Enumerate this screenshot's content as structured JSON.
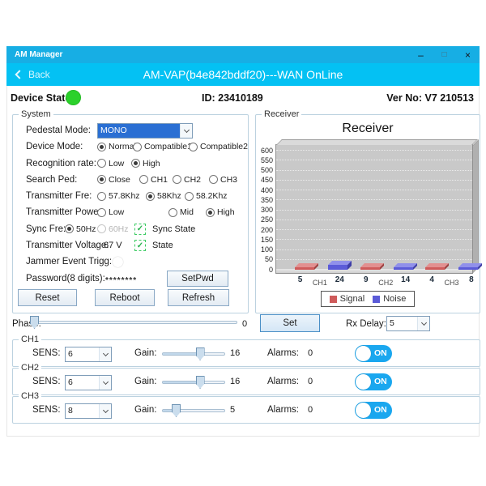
{
  "window": {
    "title": "AM Manager",
    "controls": {
      "minimize": "–",
      "maximize": "□",
      "close": "×"
    }
  },
  "header": {
    "back_label": "Back",
    "title": "AM-VAP(b4e842bddf20)---WAN OnLine"
  },
  "status": {
    "device_state_label": "Device State:",
    "id_label": "ID:  23410189",
    "ver_label": "Ver No:  V7 210513"
  },
  "system": {
    "group_label": "System",
    "pedestal_mode": {
      "label": "Pedestal Mode:",
      "value": "MONO"
    },
    "device_mode": {
      "label": "Device Mode:",
      "options": [
        "Normal",
        "Compatible1",
        "Compatible2"
      ],
      "selected": "Normal"
    },
    "recognition_rate": {
      "label": "Recognition rate:",
      "options": [
        "Low",
        "High"
      ],
      "selected": "High"
    },
    "search_ped": {
      "label": "Search Ped:",
      "options": [
        "Close",
        "CH1",
        "CH2",
        "CH3"
      ],
      "selected": "Close"
    },
    "transmitter_fre": {
      "label": "Transmitter Fre:",
      "options": [
        "57.8Khz",
        "58Khz",
        "58.2Khz"
      ],
      "selected": "58Khz"
    },
    "transmitter_power": {
      "label": "Transmitter Power:",
      "options": [
        "Low",
        "Mid",
        "High"
      ],
      "selected": "High"
    },
    "sync_fre": {
      "label": "Sync Fre:",
      "options": [
        "50Hz",
        "60Hz"
      ],
      "selected": "50Hz",
      "disabled_option": "60Hz",
      "check_glyph": "✓",
      "state_label": "Sync State"
    },
    "transmitter_voltage": {
      "label": "Transmitter Voltage:",
      "value": "67 V",
      "check_glyph": "✓",
      "state_label": "State"
    },
    "jammer": {
      "label": "Jammer Event Trigg:",
      "toggle_state": "ON"
    },
    "password": {
      "label": "Password(8 digits):",
      "masked_value": "********",
      "set_button": "SetPwd"
    },
    "actions": {
      "reset": "Reset",
      "reboot": "Reboot",
      "refresh": "Refresh"
    }
  },
  "receiver": {
    "group_label": "Receiver"
  },
  "chart_data": {
    "type": "bar",
    "title": "Receiver",
    "categories": [
      "CH1",
      "CH2",
      "CH3"
    ],
    "series": [
      {
        "name": "Signal",
        "color": "#cf5b5b",
        "color_light": "#e29090",
        "color_dark": "#9e4040",
        "values": [
          5,
          9,
          4
        ]
      },
      {
        "name": "Noise",
        "color": "#5b5bd8",
        "color_light": "#9090ea",
        "color_dark": "#3e3ea6",
        "values": [
          24,
          14,
          8
        ]
      }
    ],
    "xlabel": "",
    "ylabel": "",
    "ylim": [
      0,
      600
    ],
    "yticks": [
      0,
      50,
      100,
      150,
      200,
      250,
      300,
      350,
      400,
      450,
      500,
      550,
      600
    ],
    "legend_position": "bottom",
    "grid": true,
    "plot_background": "#c9c9c9"
  },
  "phase": {
    "label": "Phase:",
    "value": "0",
    "slider_pct": 0,
    "set_button": "Set",
    "rx_delay_label": "Rx Delay:",
    "rx_delay_value": "5"
  },
  "channels": [
    {
      "label": "CH1",
      "sens_label": "SENS:",
      "sens_value": "6",
      "gain_label": "Gain:",
      "gain_value": "16",
      "gain_pct": 62,
      "alarms_label": "Alarms:",
      "alarms_value": "0",
      "toggle_state": "ON"
    },
    {
      "label": "CH2",
      "sens_label": "SENS:",
      "sens_value": "6",
      "gain_label": "Gain:",
      "gain_value": "16",
      "gain_pct": 62,
      "alarms_label": "Alarms:",
      "alarms_value": "0",
      "toggle_state": "ON"
    },
    {
      "label": "CH3",
      "sens_label": "SENS:",
      "sens_value": "8",
      "gain_label": "Gain:",
      "gain_value": "5",
      "gain_pct": 18,
      "alarms_label": "Alarms:",
      "alarms_value": "0",
      "toggle_state": "ON"
    }
  ],
  "colors": {
    "titlebar": "#17aee4",
    "header_band": "#04c1f3",
    "accent_blue": "#1aa7ef",
    "status_green": "#2bd12b",
    "check_green": "#29b14e",
    "combo_highlight": "#2a6fd3"
  }
}
